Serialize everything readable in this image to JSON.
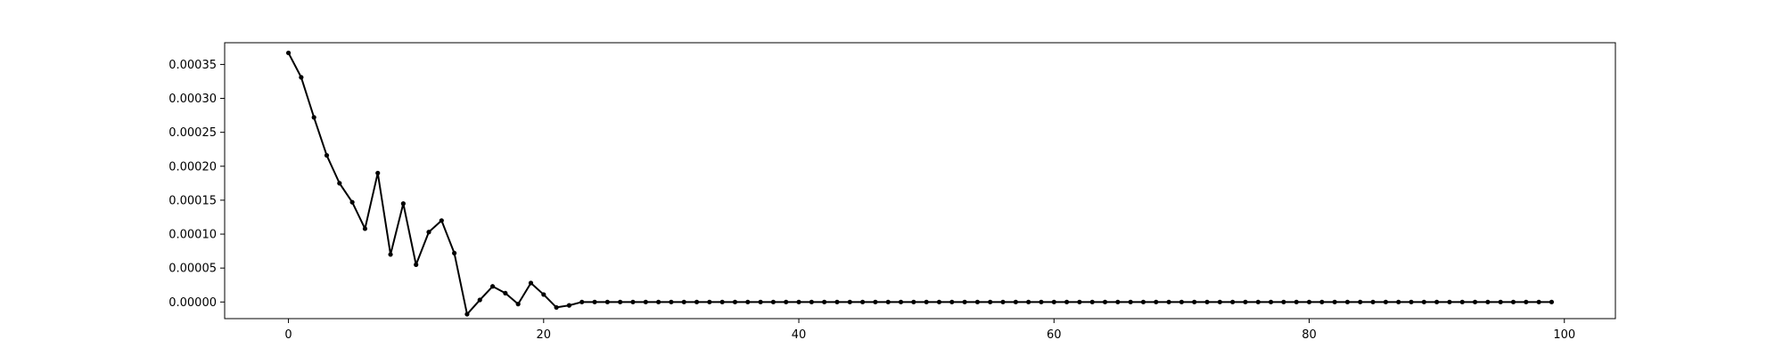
{
  "chart_data": {
    "type": "line",
    "title": "",
    "xlabel": "",
    "ylabel": "",
    "xlim": [
      -5,
      104
    ],
    "ylim": [
      -2.45e-05,
      0.000382
    ],
    "grid": false,
    "legend": "none",
    "line_color": "#000000",
    "marker": "dot",
    "x_ticks": [
      0,
      20,
      40,
      60,
      80,
      100
    ],
    "x_tick_labels": [
      "0",
      "20",
      "40",
      "60",
      "80",
      "100"
    ],
    "y_ticks": [
      0.0,
      5e-05,
      0.0001,
      0.00015,
      0.0002,
      0.00025,
      0.0003,
      0.00035
    ],
    "y_tick_labels": [
      "0.00000",
      "0.00005",
      "0.00010",
      "0.00015",
      "0.00020",
      "0.00025",
      "0.00030",
      "0.00035"
    ],
    "series": [
      {
        "x": [
          0,
          1,
          2,
          3,
          4,
          5,
          6,
          7,
          8,
          9,
          10,
          11,
          12,
          13,
          14,
          15,
          16,
          17,
          18,
          19,
          20,
          21,
          22,
          23,
          24,
          25,
          26,
          27,
          28,
          29,
          30,
          31,
          32,
          33,
          34,
          35,
          36,
          37,
          38,
          39,
          40,
          41,
          42,
          43,
          44,
          45,
          46,
          47,
          48,
          49,
          50,
          51,
          52,
          53,
          54,
          55,
          56,
          57,
          58,
          59,
          60,
          61,
          62,
          63,
          64,
          65,
          66,
          67,
          68,
          69,
          70,
          71,
          72,
          73,
          74,
          75,
          76,
          77,
          78,
          79,
          80,
          81,
          82,
          83,
          84,
          85,
          86,
          87,
          88,
          89,
          90,
          91,
          92,
          93,
          94,
          95,
          96,
          97,
          98,
          99
        ],
        "values": [
          0.000367,
          0.000331,
          0.000272,
          0.000216,
          0.000175,
          0.000147,
          0.000108,
          0.00019,
          7e-05,
          0.000145,
          5.5e-05,
          0.000103,
          0.00012,
          7.2e-05,
          -1.8e-05,
          3e-06,
          2.3e-05,
          1.3e-05,
          -3e-06,
          2.8e-05,
          1.1e-05,
          -8e-06,
          -5e-06,
          0,
          0,
          0,
          0,
          0,
          0,
          0,
          0,
          0,
          0,
          0,
          0,
          0,
          0,
          0,
          0,
          0,
          0,
          0,
          0,
          0,
          0,
          0,
          0,
          0,
          0,
          0,
          0,
          0,
          0,
          0,
          0,
          0,
          0,
          0,
          0,
          0,
          0,
          0,
          0,
          0,
          0,
          0,
          0,
          0,
          0,
          0,
          0,
          0,
          0,
          0,
          0,
          0,
          0,
          0,
          0,
          0,
          0,
          0,
          0,
          0,
          0,
          0,
          0,
          0,
          0,
          0,
          0,
          0,
          0,
          0,
          0,
          0,
          0,
          0,
          0,
          0
        ]
      }
    ]
  }
}
